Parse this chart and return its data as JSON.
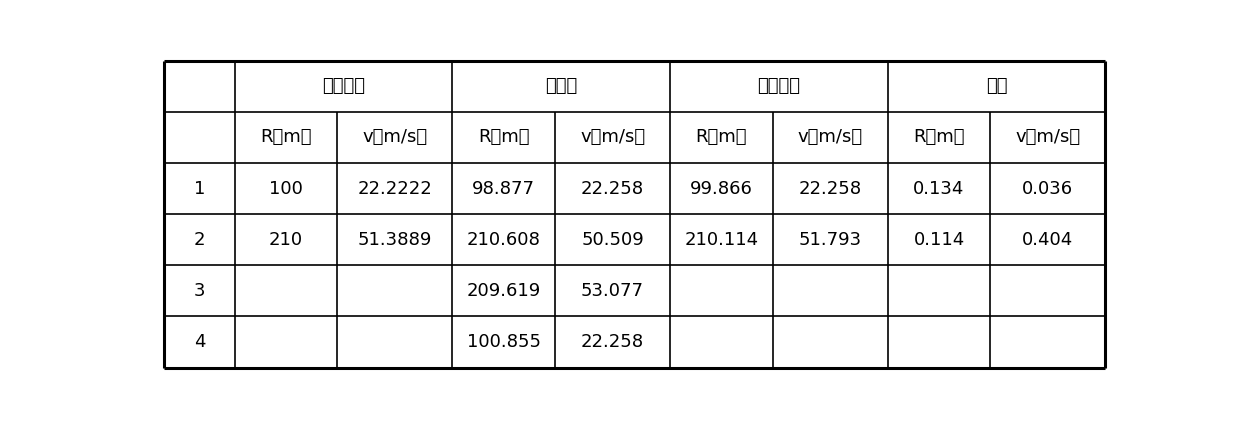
{
  "group_headers": [
    "目标真値",
    "测量値",
    "输出结果",
    "精度"
  ],
  "sub_headers": [
    "R（m）",
    "v（m/s）",
    "R（m）",
    "v（m/s）",
    "R（m）",
    "v（m/s）",
    "R（m）",
    "v（m/s）"
  ],
  "rows": [
    [
      "1",
      "100",
      "22.2222",
      "98.877",
      "22.258",
      "99.866",
      "22.258",
      "0.134",
      "0.036"
    ],
    [
      "2",
      "210",
      "51.3889",
      "210.608",
      "50.509",
      "210.114",
      "51.793",
      "0.114",
      "0.404"
    ],
    [
      "3",
      "",
      "",
      "209.619",
      "53.077",
      "",
      "",
      "",
      ""
    ],
    [
      "4",
      "",
      "",
      "100.855",
      "22.258",
      "",
      "",
      "",
      ""
    ]
  ],
  "background_color": "#ffffff",
  "line_color": "#000000",
  "text_color": "#000000",
  "font_size": 13,
  "figwidth": 12.39,
  "figheight": 4.24,
  "dpi": 100,
  "col_ratios": [
    0.72,
    1.05,
    1.18,
    1.05,
    1.18,
    1.05,
    1.18,
    1.05,
    1.18
  ],
  "lw_outer": 2.2,
  "lw_inner": 1.2
}
